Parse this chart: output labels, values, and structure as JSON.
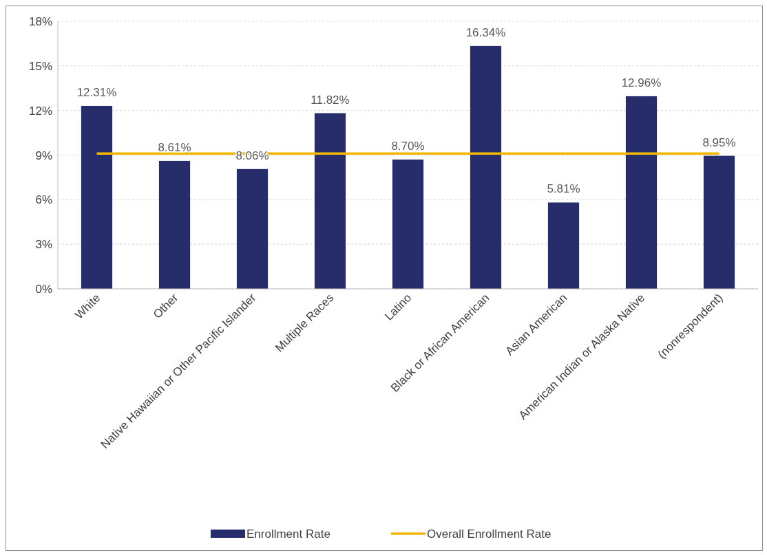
{
  "chart_data": {
    "type": "bar",
    "categories": [
      "White",
      "Other",
      "Native Hawaiian or Other Pacific Islander",
      "Multiple Races",
      "Latino",
      "Black or African American",
      "Asian American",
      "American Indian or Alaska Native",
      "(nonrespondent)"
    ],
    "series": [
      {
        "name": "Enrollment Rate",
        "color": "#272d6b",
        "values": [
          12.31,
          8.61,
          8.06,
          11.82,
          8.7,
          16.34,
          5.81,
          12.96,
          8.95
        ],
        "value_labels": [
          "12.31%",
          "8.61%",
          "8.06%",
          "11.82%",
          "8.70%",
          "16.34%",
          "5.81%",
          "12.96%",
          "8.95%"
        ]
      },
      {
        "type": "line",
        "name": "Overall Enrollment Rate",
        "color": "#f0b800",
        "values": [
          9.1,
          9.1,
          9.1,
          9.1,
          9.1,
          9.1,
          9.1,
          9.1,
          9.1
        ]
      }
    ],
    "ylim": [
      0,
      18
    ],
    "yticks": [
      {
        "value": 0,
        "label": "0%"
      },
      {
        "value": 3,
        "label": "3%"
      },
      {
        "value": 6,
        "label": "6%"
      },
      {
        "value": 9,
        "label": "9%"
      },
      {
        "value": 12,
        "label": "12%"
      },
      {
        "value": 15,
        "label": "15%"
      },
      {
        "value": 18,
        "label": "18%"
      }
    ],
    "grid": "y",
    "legend": "bottom",
    "marker": "none"
  }
}
